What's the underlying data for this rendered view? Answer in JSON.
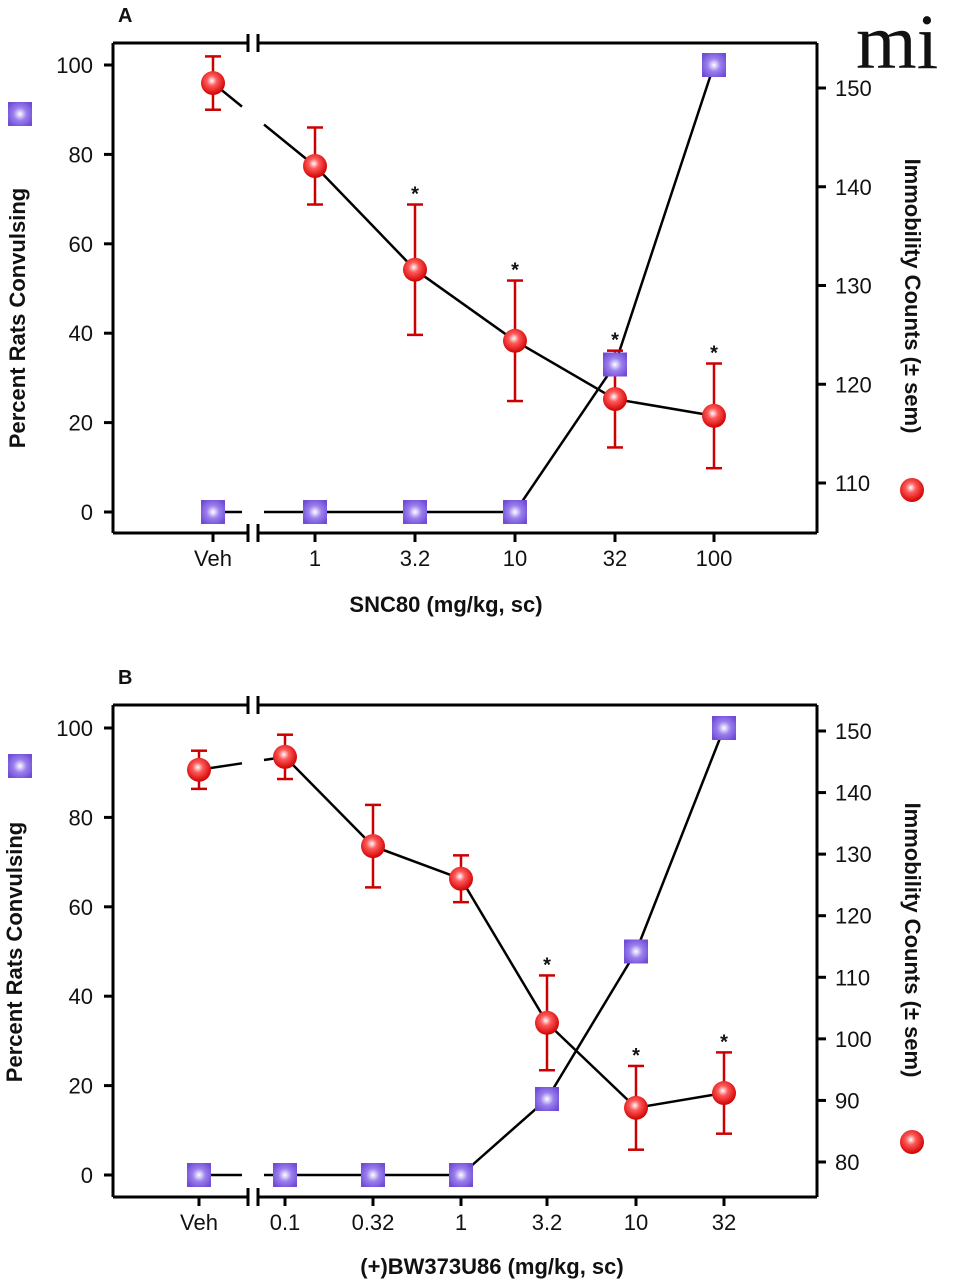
{
  "logo": {
    "text": "mi",
    "icon": "journal-logo-icon"
  },
  "colors": {
    "circle": "#e00000",
    "square": "#7a55d8",
    "line": "#000000",
    "errorbar": "#cc0000"
  },
  "chart_data": [
    {
      "panel": "A",
      "type": "line",
      "xlabel": "SNC80 (mg/kg, sc)",
      "ylabel_left": "Percent Rats Convulsing",
      "ylabel_right": "Immobility Counts (± sem)",
      "categories": [
        "Veh",
        "1",
        "3.2",
        "10",
        "32",
        "100"
      ],
      "x_axis_break_after": "Veh",
      "left_axis": {
        "range": [
          0,
          100
        ],
        "ticks": [
          0,
          20,
          40,
          60,
          80,
          100
        ]
      },
      "right_axis": {
        "range": [
          105,
          152
        ],
        "ticks": [
          110,
          120,
          130,
          140,
          150
        ]
      },
      "series": [
        {
          "name": "Percent Rats Convulsing",
          "axis": "left",
          "marker": "square",
          "values": [
            0,
            0,
            0,
            0,
            33,
            100
          ]
        },
        {
          "name": "Immobility Counts",
          "axis": "right",
          "marker": "circle",
          "values": [
            150.5,
            142.1,
            131.6,
            124.4,
            118.5,
            116.8
          ],
          "sem": [
            2.7,
            3.9,
            6.6,
            6.1,
            4.9,
            5.3
          ],
          "significant": [
            false,
            false,
            true,
            true,
            true,
            true
          ]
        }
      ],
      "legend": "axis-titles"
    },
    {
      "panel": "B",
      "type": "line",
      "xlabel": "(+)BW373U86 (mg/kg, sc)",
      "ylabel_left": "Percent Rats Convulsing",
      "ylabel_right": "Immobility Counts (± sem)",
      "categories": [
        "Veh",
        "0.1",
        "0.32",
        "1",
        "3.2",
        "10",
        "32"
      ],
      "x_axis_break_after": "Veh",
      "left_axis": {
        "range": [
          0,
          100
        ],
        "ticks": [
          0,
          20,
          40,
          60,
          80,
          100
        ]
      },
      "right_axis": {
        "range": [
          77,
          153
        ],
        "ticks": [
          80,
          90,
          100,
          110,
          120,
          130,
          140,
          150
        ]
      },
      "series": [
        {
          "name": "Percent Rats Convulsing",
          "axis": "left",
          "marker": "square",
          "values": [
            0,
            0,
            0,
            0,
            17,
            50,
            100
          ]
        },
        {
          "name": "Immobility Counts",
          "axis": "right",
          "marker": "circle",
          "values": [
            143.7,
            145.8,
            131.3,
            126.0,
            102.6,
            88.8,
            91.2
          ],
          "sem": [
            3.1,
            3.6,
            6.7,
            3.8,
            7.7,
            6.8,
            6.6
          ],
          "significant": [
            false,
            false,
            false,
            false,
            true,
            true,
            true
          ]
        }
      ],
      "legend": "axis-titles"
    }
  ]
}
